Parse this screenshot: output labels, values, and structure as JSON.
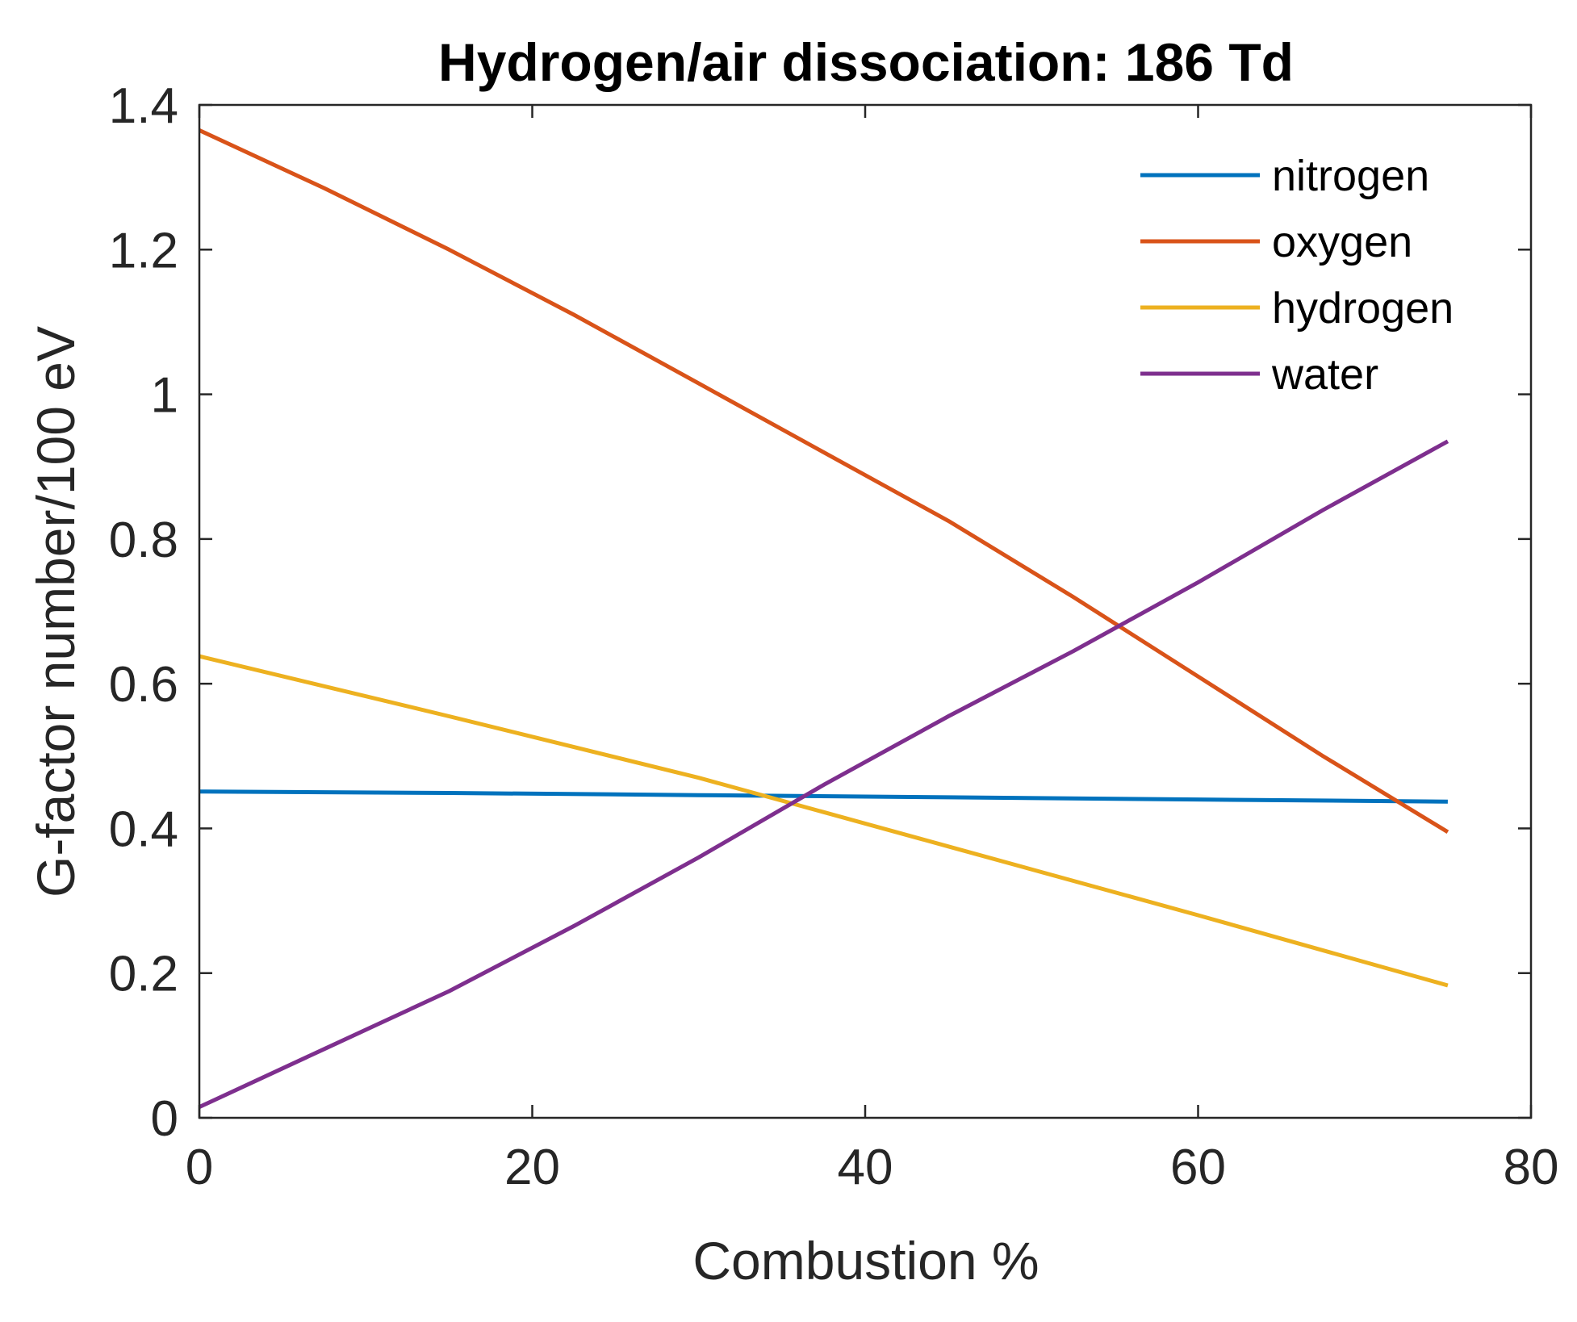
{
  "chart_data": {
    "type": "line",
    "title": "Hydrogen/air dissociation: 186 Td",
    "xlabel": "Combustion %",
    "ylabel": "G-factor number/100 eV",
    "xlim": [
      0,
      80
    ],
    "ylim": [
      0,
      1.4
    ],
    "xticks": [
      0,
      20,
      40,
      60,
      80
    ],
    "xtick_labels": [
      "0",
      "20",
      "40",
      "60",
      "80"
    ],
    "yticks": [
      0,
      0.2,
      0.4,
      0.6,
      0.8,
      1.0,
      1.2,
      1.4
    ],
    "ytick_labels": [
      "0",
      "0.2",
      "0.4",
      "0.6",
      "0.8",
      "1",
      "1.2",
      "1.4"
    ],
    "grid": false,
    "legend_position": "top-right",
    "series": [
      {
        "name": "nitrogen",
        "color": "#0072BD",
        "x": [
          0,
          15,
          30,
          45,
          60,
          75
        ],
        "y": [
          0.451,
          0.449,
          0.446,
          0.443,
          0.44,
          0.437
        ]
      },
      {
        "name": "oxygen",
        "color": "#D95319",
        "x": [
          0,
          7.5,
          15,
          22.5,
          30,
          37.5,
          45,
          52.5,
          60,
          67.5,
          75
        ],
        "y": [
          1.365,
          1.285,
          1.2,
          1.11,
          1.015,
          0.92,
          0.825,
          0.72,
          0.61,
          0.5,
          0.395
        ]
      },
      {
        "name": "hydrogen",
        "color": "#EDB120",
        "x": [
          0,
          15,
          30,
          45,
          60,
          75
        ],
        "y": [
          0.638,
          0.555,
          0.47,
          0.375,
          0.28,
          0.183
        ]
      },
      {
        "name": "water",
        "color": "#7E2F8E",
        "x": [
          0,
          7.5,
          15,
          22.5,
          30,
          37.5,
          45,
          52.5,
          60,
          67.5,
          75
        ],
        "y": [
          0.015,
          0.095,
          0.175,
          0.265,
          0.36,
          0.46,
          0.555,
          0.645,
          0.74,
          0.84,
          0.935
        ]
      }
    ]
  }
}
